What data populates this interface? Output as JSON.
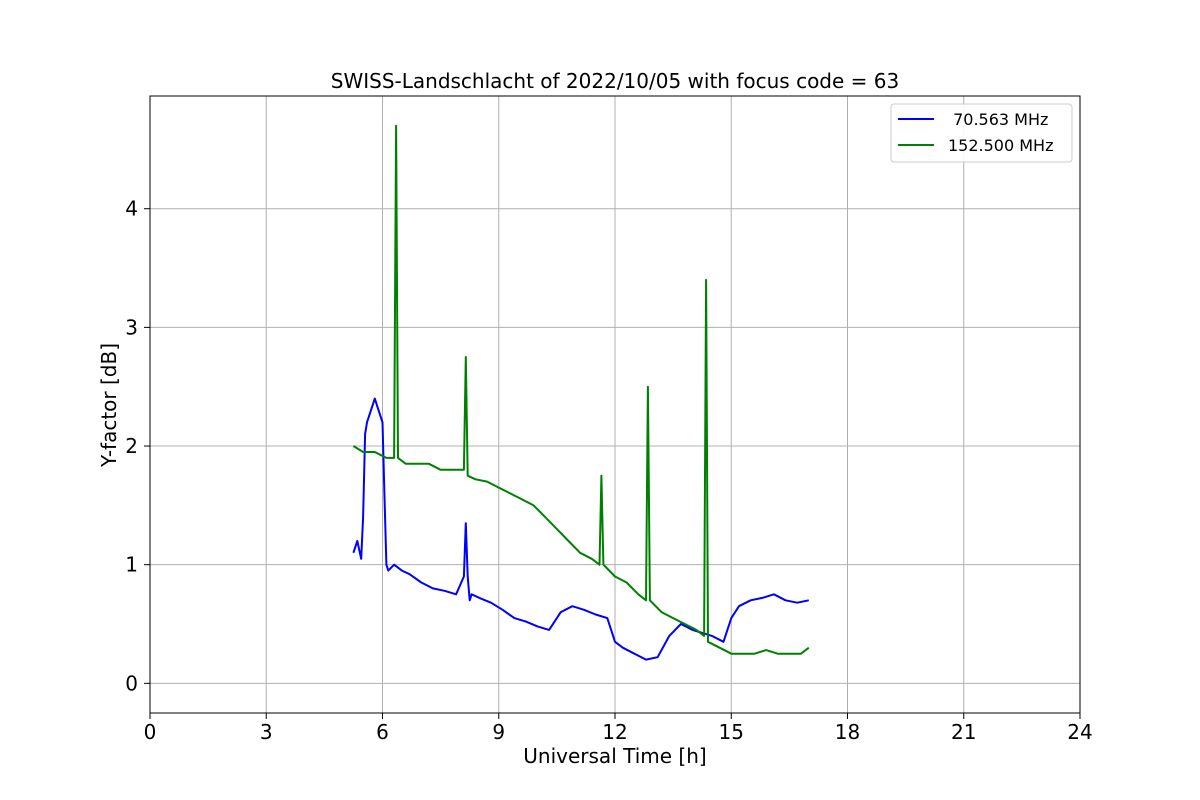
{
  "chart_data": {
    "type": "line",
    "title": "SWISS-Landschlacht of 2022/10/05 with focus code = 63",
    "xlabel": "Universal Time [h]",
    "ylabel": "Y-factor [dB]",
    "xlim": [
      0,
      24
    ],
    "ylim": [
      -0.25,
      4.95
    ],
    "xticks": [
      0,
      3,
      6,
      9,
      12,
      15,
      18,
      21,
      24
    ],
    "yticks": [
      0,
      1,
      2,
      3,
      4
    ],
    "grid": true,
    "legend_position": "top-right",
    "series": [
      {
        "name": " 70.563 MHz",
        "color": "#0000ff",
        "x": [
          5.25,
          5.35,
          5.45,
          5.5,
          5.55,
          5.6,
          5.7,
          5.8,
          5.9,
          6.0,
          6.05,
          6.1,
          6.15,
          6.3,
          6.5,
          6.7,
          7.0,
          7.3,
          7.6,
          7.9,
          8.1,
          8.15,
          8.2,
          8.25,
          8.3,
          8.5,
          8.8,
          9.1,
          9.4,
          9.7,
          10.0,
          10.3,
          10.6,
          10.9,
          11.2,
          11.5,
          11.8,
          12.0,
          12.2,
          12.5,
          12.8,
          13.1,
          13.4,
          13.7,
          14.0,
          14.3,
          14.5,
          14.8,
          15.0,
          15.2,
          15.5,
          15.8,
          16.1,
          16.4,
          16.7,
          17.0
        ],
        "y": [
          1.1,
          1.2,
          1.05,
          1.4,
          2.1,
          2.2,
          2.3,
          2.4,
          2.3,
          2.2,
          1.6,
          1.0,
          0.95,
          1.0,
          0.95,
          0.92,
          0.85,
          0.8,
          0.78,
          0.75,
          0.9,
          1.35,
          0.9,
          0.7,
          0.75,
          0.72,
          0.68,
          0.62,
          0.55,
          0.52,
          0.48,
          0.45,
          0.6,
          0.65,
          0.62,
          0.58,
          0.55,
          0.35,
          0.3,
          0.25,
          0.2,
          0.22,
          0.4,
          0.5,
          0.45,
          0.42,
          0.4,
          0.35,
          0.55,
          0.65,
          0.7,
          0.72,
          0.75,
          0.7,
          0.68,
          0.7
        ]
      },
      {
        "name": "152.500 MHz",
        "color": "#008000",
        "x": [
          5.25,
          5.5,
          5.8,
          6.1,
          6.3,
          6.35,
          6.4,
          6.6,
          6.9,
          7.2,
          7.5,
          7.8,
          8.1,
          8.15,
          8.2,
          8.4,
          8.7,
          9.0,
          9.3,
          9.6,
          9.9,
          10.2,
          10.5,
          10.8,
          11.1,
          11.4,
          11.6,
          11.65,
          11.7,
          12.0,
          12.3,
          12.6,
          12.8,
          12.85,
          12.9,
          13.2,
          13.5,
          13.8,
          14.1,
          14.3,
          14.35,
          14.4,
          14.7,
          15.0,
          15.3,
          15.6,
          15.9,
          16.2,
          16.5,
          16.8,
          17.0
        ],
        "y": [
          2.0,
          1.95,
          1.95,
          1.9,
          1.9,
          4.7,
          1.9,
          1.85,
          1.85,
          1.85,
          1.8,
          1.8,
          1.8,
          2.75,
          1.75,
          1.72,
          1.7,
          1.65,
          1.6,
          1.55,
          1.5,
          1.4,
          1.3,
          1.2,
          1.1,
          1.05,
          1.0,
          1.75,
          1.0,
          0.9,
          0.85,
          0.75,
          0.7,
          2.5,
          0.7,
          0.6,
          0.55,
          0.5,
          0.45,
          0.4,
          3.4,
          0.35,
          0.3,
          0.25,
          0.25,
          0.25,
          0.28,
          0.25,
          0.25,
          0.25,
          0.3
        ]
      }
    ]
  }
}
